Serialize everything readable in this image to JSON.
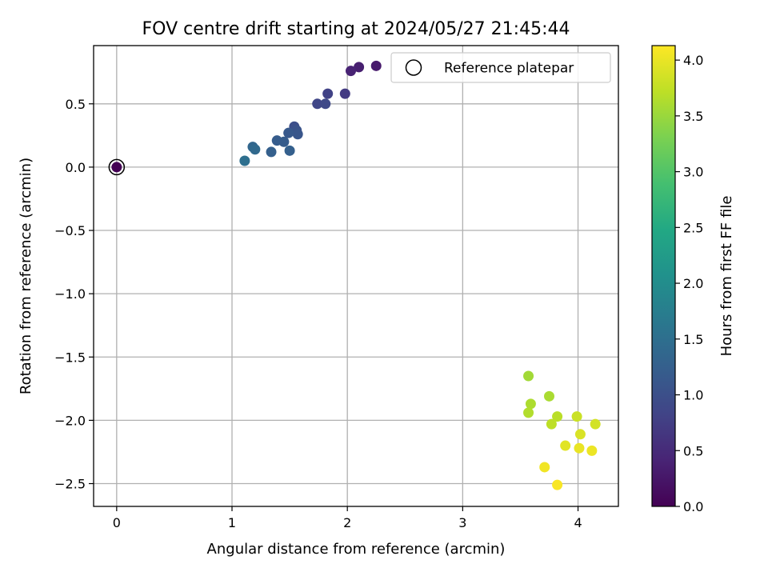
{
  "chart_data": {
    "type": "scatter",
    "title": "FOV centre drift starting at 2024/05/27 21:45:44",
    "xlabel": "Angular distance from reference (arcmin)",
    "ylabel": "Rotation from reference (arcmin)",
    "xlim": [
      -0.2,
      4.35
    ],
    "ylim": [
      -2.68,
      0.96
    ],
    "xticks": [
      0,
      1,
      2,
      3,
      4
    ],
    "yticks": [
      -2.5,
      -2.0,
      -1.5,
      -1.0,
      -0.5,
      0.0,
      0.5
    ],
    "grid": true,
    "legend": {
      "placement": "top-right",
      "entries": [
        "Reference platepar"
      ]
    },
    "reference_point": {
      "x": 0.0,
      "y": 0.0,
      "label": "Reference platepar"
    },
    "colorbar": {
      "label": "Hours from first FF file",
      "colormap": "viridis",
      "range": [
        0.0,
        4.13
      ],
      "ticks": [
        0.0,
        0.5,
        1.0,
        1.5,
        2.0,
        2.5,
        3.0,
        3.5,
        4.0
      ]
    },
    "points": [
      {
        "x": 0.0,
        "y": 0.0,
        "hours": 0.0
      },
      {
        "x": 2.25,
        "y": 0.8,
        "hours": 0.3
      },
      {
        "x": 2.1,
        "y": 0.79,
        "hours": 0.35
      },
      {
        "x": 2.03,
        "y": 0.76,
        "hours": 0.4
      },
      {
        "x": 1.98,
        "y": 0.58,
        "hours": 0.7
      },
      {
        "x": 1.83,
        "y": 0.58,
        "hours": 0.8
      },
      {
        "x": 1.74,
        "y": 0.5,
        "hours": 0.85
      },
      {
        "x": 1.81,
        "y": 0.5,
        "hours": 0.9
      },
      {
        "x": 1.54,
        "y": 0.32,
        "hours": 1.0
      },
      {
        "x": 1.56,
        "y": 0.29,
        "hours": 1.05
      },
      {
        "x": 1.57,
        "y": 0.26,
        "hours": 1.1
      },
      {
        "x": 1.49,
        "y": 0.27,
        "hours": 1.15
      },
      {
        "x": 1.39,
        "y": 0.21,
        "hours": 1.2
      },
      {
        "x": 1.45,
        "y": 0.2,
        "hours": 1.2
      },
      {
        "x": 1.5,
        "y": 0.13,
        "hours": 1.25
      },
      {
        "x": 1.34,
        "y": 0.12,
        "hours": 1.25
      },
      {
        "x": 1.18,
        "y": 0.16,
        "hours": 1.35
      },
      {
        "x": 1.2,
        "y": 0.14,
        "hours": 1.4
      },
      {
        "x": 1.11,
        "y": 0.05,
        "hours": 1.5
      },
      {
        "x": 3.57,
        "y": -1.65,
        "hours": 3.55
      },
      {
        "x": 3.75,
        "y": -1.81,
        "hours": 3.6
      },
      {
        "x": 3.59,
        "y": -1.87,
        "hours": 3.62
      },
      {
        "x": 3.57,
        "y": -1.94,
        "hours": 3.65
      },
      {
        "x": 3.82,
        "y": -1.97,
        "hours": 3.7
      },
      {
        "x": 3.77,
        "y": -2.03,
        "hours": 3.72
      },
      {
        "x": 3.99,
        "y": -1.97,
        "hours": 3.8
      },
      {
        "x": 4.15,
        "y": -2.03,
        "hours": 3.85
      },
      {
        "x": 4.02,
        "y": -2.11,
        "hours": 3.9
      },
      {
        "x": 3.89,
        "y": -2.2,
        "hours": 3.95
      },
      {
        "x": 4.01,
        "y": -2.22,
        "hours": 4.0
      },
      {
        "x": 4.12,
        "y": -2.24,
        "hours": 4.02
      },
      {
        "x": 3.71,
        "y": -2.37,
        "hours": 4.05
      },
      {
        "x": 3.82,
        "y": -2.51,
        "hours": 4.1
      }
    ]
  }
}
